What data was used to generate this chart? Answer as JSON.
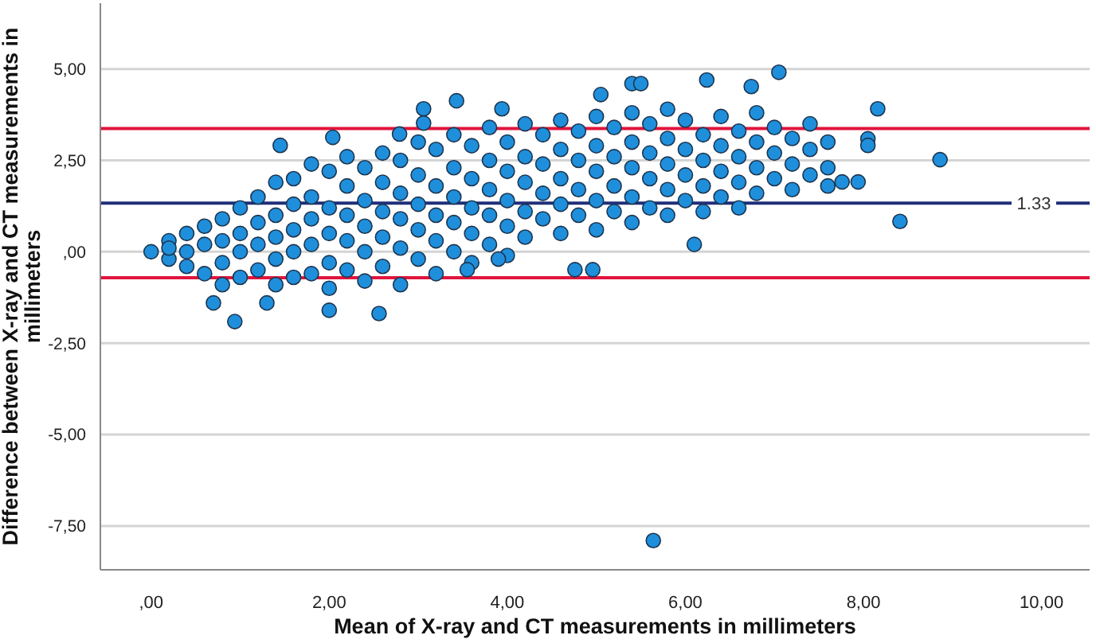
{
  "chart_data": {
    "type": "scatter",
    "xlabel": "Mean of X-ray and CT measurements in millimeters",
    "ylabel": "Difference between X-ray and CT measurements in millimeters",
    "xlim": [
      -0.57,
      10.54
    ],
    "ylim": [
      -8.7,
      6.8
    ],
    "xticks": [
      {
        "value": 0,
        "label": ",00"
      },
      {
        "value": 2,
        "label": "2,00"
      },
      {
        "value": 4,
        "label": "4,00"
      },
      {
        "value": 6,
        "label": "6,00"
      },
      {
        "value": 8,
        "label": "8,00"
      },
      {
        "value": 10,
        "label": "10,00"
      }
    ],
    "yticks": [
      {
        "value": 5,
        "label": "5,00"
      },
      {
        "value": 2.5,
        "label": "2,50"
      },
      {
        "value": 0,
        "label": ",00"
      },
      {
        "value": -2.5,
        "label": "-2,50"
      },
      {
        "value": -5,
        "label": "-5,00"
      },
      {
        "value": -7.5,
        "label": "-7,50"
      }
    ],
    "grid": "y",
    "marker": "circle",
    "ref_lines": [
      {
        "axis": "y",
        "value": 1.33,
        "label": "1.33",
        "color": "#1f2f7a"
      },
      {
        "axis": "y",
        "value": 3.37,
        "color": "#e0143c"
      },
      {
        "axis": "y",
        "value": -0.71,
        "color": "#e0143c"
      }
    ],
    "series": [
      {
        "color": "#1f8fdb",
        "x": [
          0,
          0.2,
          0.2,
          0.2,
          0.4,
          0.4,
          0.4,
          0.6,
          0.6,
          0.6,
          0.8,
          0.8,
          0.8,
          0.8,
          1.0,
          1.0,
          1.0,
          1.0,
          1.2,
          1.2,
          1.2,
          1.2,
          1.4,
          1.4,
          1.4,
          1.4,
          1.4,
          1.6,
          1.6,
          1.6,
          1.6,
          1.6,
          1.8,
          1.8,
          1.8,
          1.8,
          1.8,
          2.0,
          2.0,
          2.0,
          2.0,
          2.0,
          2.2,
          2.2,
          2.2,
          2.2,
          2.2,
          2.4,
          2.4,
          2.4,
          2.4,
          2.4,
          2.6,
          2.6,
          2.6,
          2.6,
          2.6,
          2.8,
          2.8,
          2.8,
          2.8,
          2.8,
          3.0,
          3.0,
          3.0,
          3.0,
          3.0,
          3.2,
          3.2,
          3.2,
          3.2,
          3.2,
          3.4,
          3.4,
          3.4,
          3.4,
          3.4,
          3.6,
          3.6,
          3.6,
          3.6,
          3.6,
          3.8,
          3.8,
          3.8,
          3.8,
          3.8,
          4.0,
          4.0,
          4.0,
          4.0,
          4.0,
          4.2,
          4.2,
          4.2,
          4.2,
          4.2,
          4.4,
          4.4,
          4.4,
          4.4,
          4.6,
          4.6,
          4.6,
          4.6,
          4.6,
          4.8,
          4.8,
          4.8,
          4.8,
          5.0,
          5.0,
          5.0,
          5.0,
          5.0,
          5.2,
          5.2,
          5.2,
          5.2,
          5.4,
          5.4,
          5.4,
          5.4,
          5.4,
          5.6,
          5.6,
          5.6,
          5.6,
          5.8,
          5.8,
          5.8,
          5.8,
          5.8,
          6.0,
          6.0,
          6.0,
          6.0,
          6.2,
          6.2,
          6.2,
          6.2,
          6.4,
          6.4,
          6.4,
          6.4,
          6.6,
          6.6,
          6.6,
          6.6,
          6.8,
          6.8,
          6.8,
          6.8,
          7.0,
          7.0,
          7.0,
          7.2,
          7.2,
          7.2,
          7.4,
          7.4,
          7.4,
          7.6,
          7.6,
          7.6,
          0.94,
          1.45,
          2.04,
          3.06,
          3.43,
          3.06,
          2.79,
          2.0,
          2.56,
          1.3,
          0.7,
          7.05,
          6.24,
          5.4,
          5.5,
          6.74,
          5.05,
          3.94,
          6.1,
          4.76,
          4.96,
          3.9,
          3.55,
          8.16,
          8.86,
          8.41,
          8.05,
          8.05,
          7.94,
          7.76,
          5.64
        ],
        "values": [
          0,
          0.3,
          -0.2,
          0.1,
          0.5,
          0.0,
          -0.4,
          0.7,
          0.2,
          -0.6,
          0.9,
          0.3,
          -0.3,
          -0.9,
          1.2,
          0.5,
          0.0,
          -0.7,
          1.5,
          0.8,
          0.2,
          -0.5,
          1.9,
          1.0,
          0.4,
          -0.2,
          -0.9,
          2.0,
          1.3,
          0.6,
          0.0,
          -0.7,
          2.4,
          1.5,
          0.9,
          0.2,
          -0.6,
          2.2,
          1.2,
          0.5,
          -0.3,
          -1.0,
          2.6,
          1.8,
          1.0,
          0.3,
          -0.5,
          2.3,
          1.4,
          0.7,
          0.0,
          -0.8,
          2.7,
          1.9,
          1.1,
          0.4,
          -0.4,
          2.5,
          1.6,
          0.9,
          0.1,
          -0.9,
          3.0,
          2.1,
          1.3,
          0.6,
          -0.2,
          2.8,
          1.8,
          1.0,
          0.3,
          -0.6,
          3.2,
          2.3,
          1.5,
          0.8,
          0.0,
          2.9,
          2.0,
          1.2,
          0.5,
          -0.3,
          3.4,
          2.5,
          1.7,
          1.0,
          0.2,
          3.0,
          2.2,
          1.4,
          0.7,
          -0.1,
          3.5,
          2.6,
          1.9,
          1.1,
          0.4,
          3.2,
          2.4,
          1.6,
          0.9,
          3.6,
          2.8,
          2.0,
          1.3,
          0.5,
          3.3,
          2.5,
          1.7,
          1.0,
          3.7,
          2.9,
          2.2,
          1.4,
          0.6,
          3.4,
          2.6,
          1.8,
          1.1,
          3.8,
          3.0,
          2.3,
          1.5,
          0.8,
          3.5,
          2.7,
          2.0,
          1.2,
          3.9,
          3.1,
          2.4,
          1.7,
          1.0,
          3.6,
          2.8,
          2.1,
          1.4,
          3.2,
          2.5,
          1.8,
          1.1,
          3.7,
          2.9,
          2.2,
          1.5,
          3.3,
          2.6,
          1.9,
          1.2,
          3.8,
          3.0,
          2.3,
          1.6,
          3.4,
          2.7,
          2.0,
          3.1,
          2.4,
          1.7,
          3.5,
          2.8,
          2.1,
          3.0,
          2.3,
          1.8,
          -1.91,
          2.91,
          3.13,
          3.91,
          4.13,
          3.52,
          3.22,
          -1.6,
          -1.69,
          -1.4,
          -1.4,
          4.91,
          4.7,
          4.6,
          4.6,
          4.52,
          4.3,
          3.91,
          0.2,
          -0.49,
          -0.49,
          -0.2,
          -0.49,
          3.91,
          2.52,
          0.83,
          3.09,
          2.91,
          1.91,
          1.91,
          -7.9
        ]
      }
    ]
  }
}
